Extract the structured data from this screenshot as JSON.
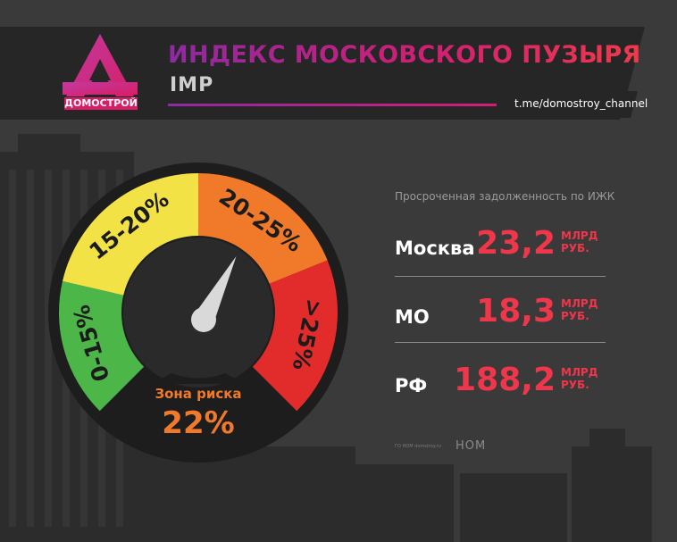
{
  "header": {
    "title": "ИНДЕКС МОСКОВСКОГО ПУЗЫРЯ",
    "subtitle": "IMP",
    "logo_text": "ДОМОСТРОЙ",
    "channel": "t.me/domostroy_channel"
  },
  "colors": {
    "background": "#3a3a3b",
    "accent_purple": "#8e2aa1",
    "accent_pink": "#d01f73",
    "value_red": "#f0364a",
    "zone_orange": "#f07a2a",
    "gauge_green": "#4cb648",
    "gauge_yellow": "#f2e245",
    "gauge_orange": "#f07a2a",
    "gauge_red": "#e22b2b"
  },
  "gauge": {
    "zones": [
      "0-15%",
      "15-20%",
      "20-25%",
      ">25%"
    ],
    "zone_label": "Зона риска",
    "zone_value": "22%",
    "needle_value": 22
  },
  "panel": {
    "title": "Просроченная задолженность по ИЖК",
    "rows": [
      {
        "label": "Москва",
        "value": "23,2",
        "unit1": "МЛРД",
        "unit2": "РУБ."
      },
      {
        "label": "МО",
        "value": "18,3",
        "unit1": "МЛРД",
        "unit2": "РУБ."
      },
      {
        "label": "РФ",
        "value": "188,2",
        "unit1": "МЛРД",
        "unit2": "РУБ."
      }
    ]
  },
  "footer": {
    "source": "ГО НОМ domstroy.ru",
    "partner": "НОМ"
  },
  "chart_data": {
    "type": "gauge",
    "zones": [
      {
        "label": "0-15%",
        "from": 0,
        "to": 15,
        "color": "#4cb648"
      },
      {
        "label": "15-20%",
        "from": 15,
        "to": 20,
        "color": "#f2e245"
      },
      {
        "label": "20-25%",
        "from": 20,
        "to": 25,
        "color": "#f07a2a"
      },
      {
        "label": ">25%",
        "from": 25,
        "to": 30,
        "color": "#e22b2b"
      }
    ],
    "value": 22,
    "value_label": "22%",
    "caption": "Зона риска"
  }
}
